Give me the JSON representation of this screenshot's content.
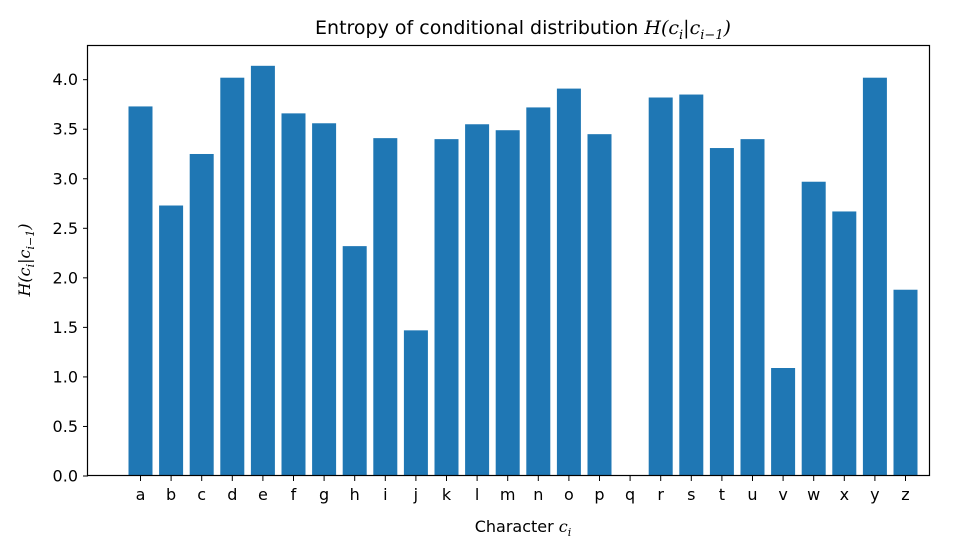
{
  "chart_data": {
    "type": "bar",
    "title_text": "Entropy of conditional distribution ",
    "title_math": "H(c",
    "title_math_sub": "i",
    "title_math_mid": "|c",
    "title_math_sub2": "i−1",
    "title_math_end": ")",
    "xlabel_text": "Character ",
    "xlabel_math": "c",
    "xlabel_sub": "i",
    "ylabel_math": "H(c",
    "ylabel_sub": "i",
    "ylabel_mid": "|c",
    "ylabel_sub2": "i−1",
    "ylabel_end": ")",
    "categories": [
      "a",
      "b",
      "c",
      "d",
      "e",
      "f",
      "g",
      "h",
      "i",
      "j",
      "k",
      "l",
      "m",
      "n",
      "o",
      "p",
      "q",
      "r",
      "s",
      "t",
      "u",
      "v",
      "w",
      "x",
      "y",
      "z"
    ],
    "values": [
      3.73,
      2.73,
      3.25,
      4.02,
      4.14,
      3.66,
      3.56,
      2.32,
      3.41,
      1.47,
      3.4,
      3.55,
      3.49,
      3.72,
      3.91,
      3.45,
      0.0,
      3.82,
      3.85,
      3.31,
      3.4,
      1.09,
      2.97,
      2.67,
      4.02,
      1.88
    ],
    "yticks": [
      "0.0",
      "0.5",
      "1.0",
      "1.5",
      "2.0",
      "2.5",
      "3.0",
      "3.5",
      "4.0"
    ],
    "ylim": [
      0,
      4.35
    ],
    "bar_color": "#1f77b4",
    "grid": false,
    "legend": "none"
  }
}
